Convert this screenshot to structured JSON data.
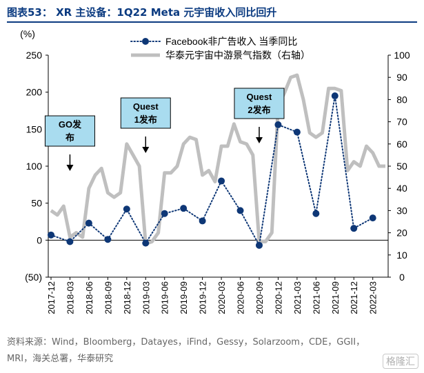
{
  "figure": {
    "title": "图表53： XR 主设备：1Q22 Meta 元宇宙收入同比回升",
    "source": "资料来源：Wind，Bloomberg，Datayes，iFind，Gessy，Solarzoom，CDE，GGII，MRI，海关总署，华泰研究",
    "watermark": "格隆汇",
    "colors": {
      "title": "#0a3a80",
      "facebook_series": "#0e3776",
      "index_series": "#bfbfbf",
      "callout_fill": "#a9dcef"
    }
  },
  "chart_data": {
    "type": "line",
    "left_axis_unit": "(%)",
    "ylim_left": [
      -50,
      250
    ],
    "yticks_left": [
      "(50)",
      "0",
      "50",
      "100",
      "150",
      "200",
      "250"
    ],
    "ylim_right": [
      0,
      100
    ],
    "yticks_right": [
      "0",
      "10",
      "20",
      "30",
      "40",
      "50",
      "60",
      "70",
      "80",
      "90",
      "100"
    ],
    "x": [
      "2017-12",
      "2018-01",
      "2018-02",
      "2018-03",
      "2018-04",
      "2018-05",
      "2018-06",
      "2018-07",
      "2018-08",
      "2018-09",
      "2018-10",
      "2018-11",
      "2018-12",
      "2019-01",
      "2019-02",
      "2019-03",
      "2019-04",
      "2019-05",
      "2019-06",
      "2019-07",
      "2019-08",
      "2019-09",
      "2019-10",
      "2019-11",
      "2019-12",
      "2020-01",
      "2020-02",
      "2020-03",
      "2020-04",
      "2020-05",
      "2020-06",
      "2020-07",
      "2020-08",
      "2020-09",
      "2020-10",
      "2020-11",
      "2020-12",
      "2021-01",
      "2021-02",
      "2021-03",
      "2021-04",
      "2021-05",
      "2021-06",
      "2021-07",
      "2021-08",
      "2021-09",
      "2021-10",
      "2021-11",
      "2021-12",
      "2022-01",
      "2022-02",
      "2022-03",
      "2022-04",
      "2022-05"
    ],
    "x_tick_labels": [
      "2017-12",
      "2018-03",
      "2018-06",
      "2018-09",
      "2018-12",
      "2019-03",
      "2019-06",
      "2019-09",
      "2019-12",
      "2020-03",
      "2020-06",
      "2020-09",
      "2020-12",
      "2021-03",
      "2021-06",
      "2021-09",
      "2021-12",
      "2022-03"
    ],
    "grid": false,
    "legend_position": "top",
    "series": [
      {
        "name": "Facebook非广告收入 当季同比",
        "axis": "left",
        "style": "dotted-with-markers",
        "points": [
          {
            "x": "2017-12",
            "y": 7
          },
          {
            "x": "2018-03",
            "y": -2
          },
          {
            "x": "2018-06",
            "y": 23
          },
          {
            "x": "2018-09",
            "y": 1
          },
          {
            "x": "2018-12",
            "y": 42
          },
          {
            "x": "2019-03",
            "y": -4
          },
          {
            "x": "2019-06",
            "y": 36
          },
          {
            "x": "2019-09",
            "y": 43
          },
          {
            "x": "2019-12",
            "y": 26
          },
          {
            "x": "2020-03",
            "y": 80
          },
          {
            "x": "2020-06",
            "y": 40
          },
          {
            "x": "2020-09",
            "y": -7
          },
          {
            "x": "2020-12",
            "y": 156
          },
          {
            "x": "2021-03",
            "y": 146
          },
          {
            "x": "2021-06",
            "y": 36
          },
          {
            "x": "2021-09",
            "y": 195
          },
          {
            "x": "2021-12",
            "y": 16
          },
          {
            "x": "2022-03",
            "y": 30
          }
        ]
      },
      {
        "name": "华泰元宇宙中游景气指数（右轴）",
        "axis": "right",
        "style": "solid-thick",
        "values": [
          30,
          28,
          32,
          18,
          20,
          18,
          40,
          46,
          49,
          38,
          36,
          38,
          60,
          55,
          50,
          15,
          16,
          20,
          47,
          47,
          50,
          60,
          63,
          62,
          46,
          48,
          43,
          59,
          59,
          69,
          61,
          60,
          55,
          16,
          16,
          20,
          77,
          83,
          90,
          91,
          80,
          65,
          63,
          65,
          85,
          85,
          84,
          48,
          52,
          50,
          59,
          56,
          50,
          50
        ]
      }
    ],
    "annotations": [
      {
        "lines": [
          "GO发",
          "布"
        ],
        "x": "2018-03"
      },
      {
        "lines": [
          "Quest",
          "1发布"
        ],
        "x": "2019-03"
      },
      {
        "lines": [
          "Quest",
          "2发布"
        ],
        "x": "2020-09"
      }
    ]
  }
}
